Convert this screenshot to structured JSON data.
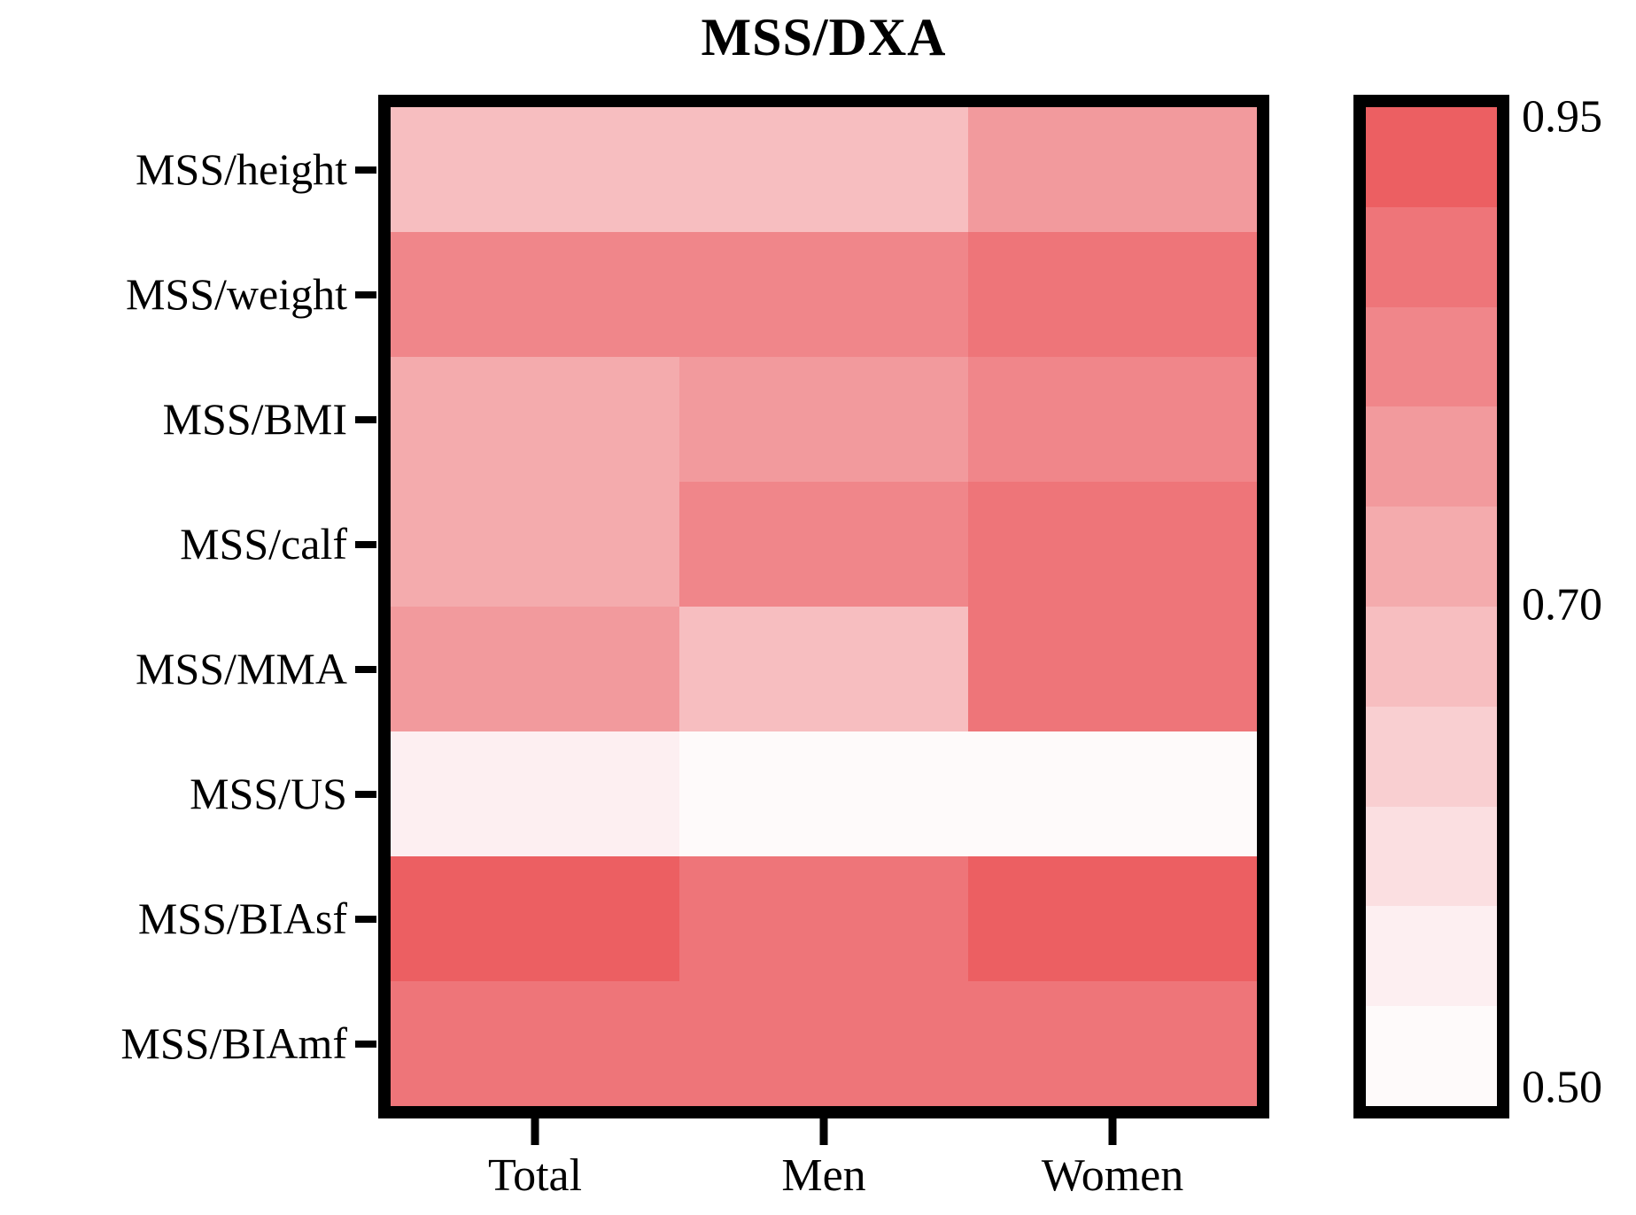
{
  "title": "MSS/DXA",
  "colors": {
    "background": "#ffffff",
    "border": "#000000",
    "text": "#000000"
  },
  "chart_data": {
    "type": "heatmap",
    "title": "MSS/DXA",
    "rows": [
      "MSS/height",
      "MSS/weight",
      "MSS/BMI",
      "MSS/calf",
      "MSS/MMA",
      "MSS/US",
      "MSS/BIAsf",
      "MSS/BIAmf"
    ],
    "columns": [
      "Total",
      "Men",
      "Women"
    ],
    "values": [
      [
        0.68,
        0.68,
        0.77
      ],
      [
        0.82,
        0.82,
        0.87
      ],
      [
        0.73,
        0.77,
        0.82
      ],
      [
        0.73,
        0.82,
        0.87
      ],
      [
        0.77,
        0.68,
        0.87
      ],
      [
        0.53,
        0.47,
        0.47
      ],
      [
        0.93,
        0.88,
        0.93
      ],
      [
        0.88,
        0.87,
        0.88
      ]
    ],
    "grid": false,
    "legend_position": "right",
    "colorbar": {
      "vmin": 0.45,
      "vmax": 0.95,
      "step": 0.05,
      "palette_top_to_bottom": [
        "#ec5f62",
        "#ee7579",
        "#f0868a",
        "#f29a9d",
        "#f4abad",
        "#f7bec0",
        "#f9cfd1",
        "#fbdfe1",
        "#fdeff1",
        "#fefafa"
      ],
      "ticks": [
        {
          "label": "0.95",
          "position": 0.01
        },
        {
          "label": "0.70",
          "position": 0.498
        },
        {
          "label": "0.50",
          "position": 0.981
        }
      ]
    }
  }
}
